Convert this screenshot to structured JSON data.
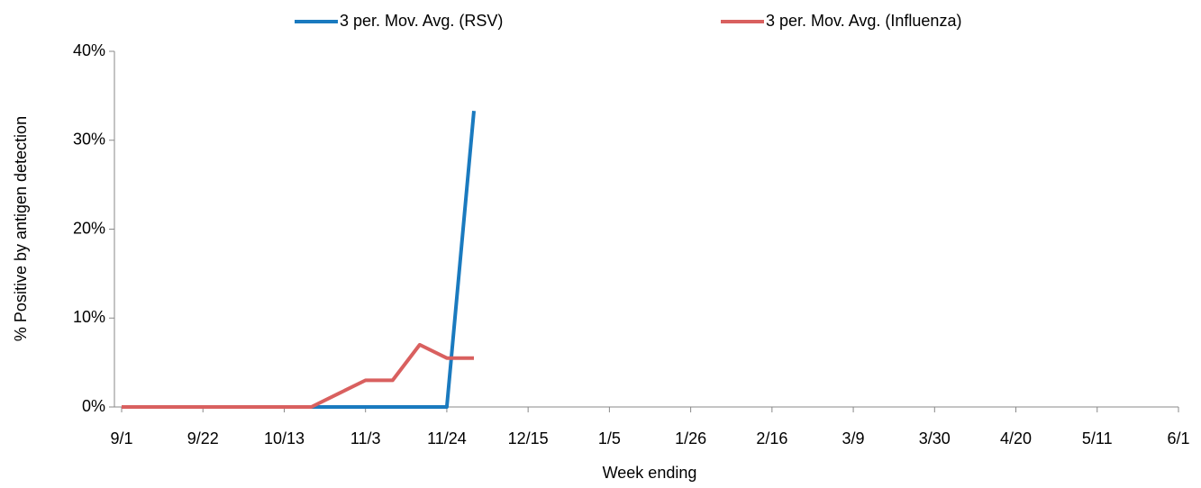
{
  "chart_data": {
    "type": "line",
    "x_label": "Week ending",
    "y_label": "% Positive by antigen detection",
    "categories": [
      "9/1",
      null,
      null,
      "9/22",
      null,
      null,
      "10/13",
      null,
      null,
      "11/3",
      null,
      null,
      "11/24",
      null,
      null,
      "12/15",
      null,
      null,
      "1/5",
      null,
      null,
      "1/26",
      null,
      null,
      "2/16",
      null,
      null,
      "3/9",
      null,
      null,
      "3/30",
      null,
      null,
      "4/20",
      null,
      null,
      "5/11",
      null,
      null,
      "6/1"
    ],
    "series": [
      {
        "name": "3 per. Mov. Avg. (RSV)",
        "color": "#1a7abf",
        "values": [
          0,
          0,
          0,
          0,
          0,
          0,
          0,
          0,
          0,
          0,
          0,
          0,
          0,
          33.3,
          null,
          null,
          null,
          null,
          null,
          null,
          null,
          null,
          null,
          null,
          null,
          null,
          null,
          null,
          null,
          null,
          null,
          null,
          null,
          null,
          null,
          null,
          null,
          null,
          null,
          null
        ]
      },
      {
        "name": "3 per. Mov. Avg. (Influenza)",
        "color": "#d9605f",
        "values": [
          0,
          0,
          0,
          0,
          0,
          0,
          0,
          0,
          1.5,
          3,
          3,
          7,
          5.5,
          5.5,
          null,
          null,
          null,
          null,
          null,
          null,
          null,
          null,
          null,
          null,
          null,
          null,
          null,
          null,
          null,
          null,
          null,
          null,
          null,
          null,
          null,
          null,
          null,
          null,
          null,
          null
        ]
      }
    ],
    "ylim": [
      0,
      40
    ],
    "yticks": [
      {
        "value": 0,
        "label": "0%"
      },
      {
        "value": 10,
        "label": "10%"
      },
      {
        "value": 20,
        "label": "20%"
      },
      {
        "value": 30,
        "label": "30%"
      },
      {
        "value": 40,
        "label": "40%"
      }
    ],
    "legend": "top"
  }
}
